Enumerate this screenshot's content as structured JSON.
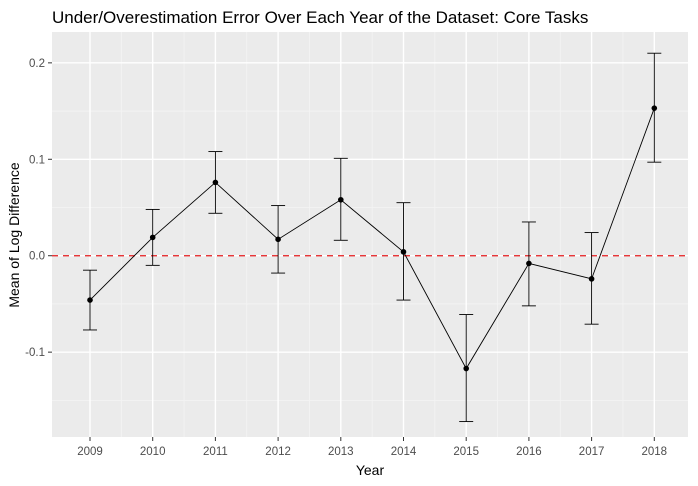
{
  "chart_data": {
    "type": "line",
    "title": "Under/Overestimation Error Over Each Year of the Dataset: Core Tasks",
    "xlabel": "Year",
    "ylabel": "Mean of Log Difference",
    "categories": [
      "2009",
      "2010",
      "2011",
      "2012",
      "2013",
      "2014",
      "2015",
      "2016",
      "2017",
      "2018"
    ],
    "y_ticks": [
      -0.1,
      0.0,
      0.1,
      0.2
    ],
    "y_tick_labels": [
      "-0.1",
      "0.0",
      "0.1",
      "0.2"
    ],
    "ylim": [
      -0.188,
      0.232
    ],
    "series": [
      {
        "values": [
          -0.046,
          0.019,
          0.076,
          0.017,
          0.058,
          0.004,
          -0.117,
          -0.008,
          -0.024,
          0.153
        ],
        "error_lower": [
          -0.077,
          -0.01,
          0.044,
          -0.018,
          0.016,
          -0.046,
          -0.172,
          -0.052,
          -0.071,
          0.097
        ],
        "error_upper": [
          -0.015,
          0.048,
          0.108,
          0.052,
          0.101,
          0.055,
          -0.061,
          0.035,
          0.024,
          0.21
        ]
      }
    ],
    "reference_line": {
      "y": 0.0,
      "style": "dashed",
      "color": "#e41a1c"
    },
    "grid": true,
    "legend": "none",
    "colors": {
      "panel_background": "#ebebeb",
      "grid_major": "#ffffff",
      "grid_minor": "#f4f4f4",
      "line": "#000000",
      "point": "#000000",
      "error_bar": "#000000",
      "tick": "#333333",
      "tick_label": "#4d4d4d"
    }
  }
}
